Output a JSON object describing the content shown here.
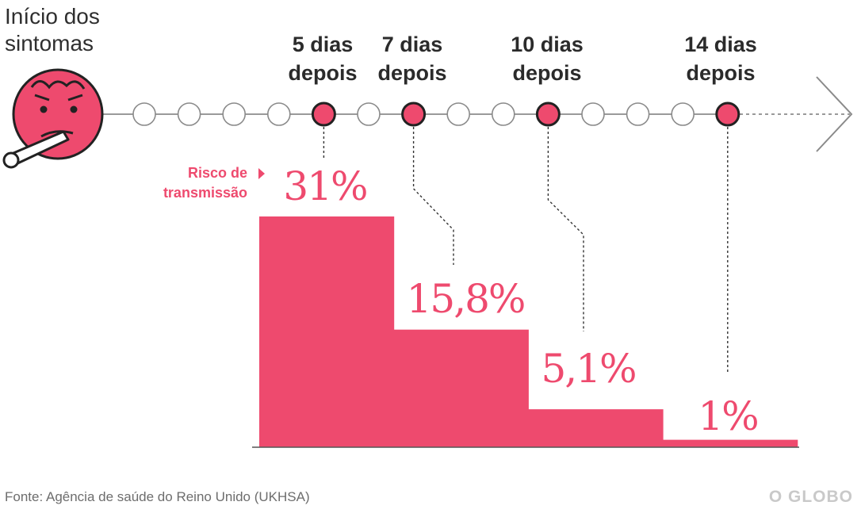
{
  "chart_data": {
    "type": "bar",
    "title": "Início dos sintomas",
    "start_label_lines": [
      "Início dos",
      "sintomas"
    ],
    "ylabel_lines": [
      "Risco de",
      "transmissão"
    ],
    "categories": [
      "5 dias depois",
      "7 dias depois",
      "10 dias depois",
      "14 dias depois"
    ],
    "category_lines": [
      [
        "5 dias",
        "depois"
      ],
      [
        "7 dias",
        "depois"
      ],
      [
        "10 dias",
        "depois"
      ],
      [
        "14 dias",
        "depois"
      ]
    ],
    "timeline_days": [
      1,
      2,
      3,
      4,
      5,
      6,
      7,
      8,
      9,
      10,
      11,
      12,
      13,
      14
    ],
    "highlighted_days": [
      5,
      7,
      10,
      14
    ],
    "values": [
      31,
      15.8,
      5.1,
      1
    ],
    "value_labels": [
      "31%",
      "15,8%",
      "5,1%",
      "1%"
    ],
    "unit": "%",
    "ylim": [
      0,
      31
    ],
    "grid": false
  },
  "footer": {
    "source": "Fonte: Agência de saúde do Reino Unido (UKHSA)",
    "brand": "O GLOBO"
  },
  "colors": {
    "accent": "#ee4a6e",
    "line": "#9a9a9a",
    "text": "#2b2b2b",
    "muted": "#6d6d6d",
    "brand": "#c9c9c9"
  }
}
